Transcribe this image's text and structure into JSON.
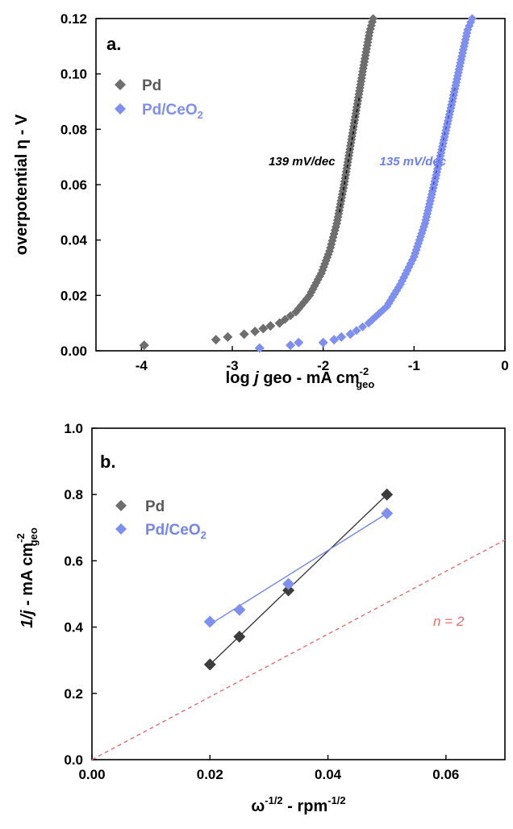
{
  "chart_data": [
    {
      "type": "scatter",
      "panel_label": "a.",
      "xlabel": {
        "pre": "log ",
        "italic": "j",
        "post": " geo - mA cm",
        "sup": "-2",
        "sub": "geo"
      },
      "ylabel": "overpotential η - V",
      "xlim": [
        -4.5,
        0
      ],
      "ylim": [
        0,
        0.12
      ],
      "xticks": [
        -4,
        -3,
        -2,
        -1,
        0
      ],
      "yticks": [
        0.0,
        0.02,
        0.04,
        0.06,
        0.08,
        0.1,
        0.12
      ],
      "ytick_labels": [
        "0.00",
        "0.02",
        "0.04",
        "0.06",
        "0.08",
        "0.10",
        "0.12"
      ],
      "legend_position": "top-left",
      "series": [
        {
          "name": "Pd",
          "color": "#6e6e6e",
          "sparse": [
            [
              -3.97,
              0.002
            ],
            [
              -3.18,
              0.004
            ],
            [
              -3.05,
              0.005
            ],
            [
              -2.87,
              0.006
            ],
            [
              -2.75,
              0.007
            ],
            [
              -2.66,
              0.008
            ],
            [
              -2.58,
              0.009
            ],
            [
              -2.48,
              0.01
            ]
          ],
          "dense_curve": [
            [
              -2.48,
              0.01
            ],
            [
              -2.3,
              0.014
            ],
            [
              -2.15,
              0.02
            ],
            [
              -2.02,
              0.028
            ],
            [
              -1.93,
              0.036
            ],
            [
              -1.85,
              0.046
            ],
            [
              -1.77,
              0.06
            ],
            [
              -1.7,
              0.074
            ],
            [
              -1.63,
              0.088
            ],
            [
              -1.56,
              0.102
            ],
            [
              -1.49,
              0.115
            ],
            [
              -1.45,
              0.12
            ]
          ]
        },
        {
          "name": "Pd/CeO",
          "name_sub": "2",
          "color": "#7e8ff0",
          "sparse": [
            [
              -2.7,
              0.001
            ],
            [
              -2.36,
              0.002
            ],
            [
              -2.27,
              0.003
            ],
            [
              -2.0,
              0.003
            ],
            [
              -1.88,
              0.004
            ],
            [
              -1.8,
              0.005
            ],
            [
              -1.7,
              0.006
            ]
          ],
          "dense_curve": [
            [
              -1.7,
              0.006
            ],
            [
              -1.5,
              0.01
            ],
            [
              -1.3,
              0.016
            ],
            [
              -1.15,
              0.024
            ],
            [
              -1.0,
              0.034
            ],
            [
              -0.88,
              0.046
            ],
            [
              -0.78,
              0.06
            ],
            [
              -0.68,
              0.075
            ],
            [
              -0.58,
              0.09
            ],
            [
              -0.49,
              0.104
            ],
            [
              -0.41,
              0.116
            ],
            [
              -0.36,
              0.12
            ]
          ]
        }
      ],
      "fit_lines": [
        {
          "series": "Pd",
          "color": "#111111",
          "points": [
            [
              -1.82,
              0.05
            ],
            [
              -1.6,
              0.092
            ]
          ]
        },
        {
          "series": "Pd/CeO2",
          "color": "#4455cc",
          "points": [
            [
              -0.8,
              0.058
            ],
            [
              -0.55,
              0.095
            ]
          ]
        }
      ],
      "annotations": [
        {
          "text": "139 mV/dec",
          "x": -2.6,
          "y": 0.067,
          "color": "#000000"
        },
        {
          "text": "135 mV/dec",
          "x": -1.38,
          "y": 0.067,
          "color": "#6c7ef0"
        }
      ]
    },
    {
      "type": "scatter",
      "panel_label": "b.",
      "xlabel": {
        "pre": "ω",
        "sup": "-1/2",
        "mid": " - rpm",
        "sup2": "-1/2"
      },
      "ylabel": {
        "italic": "1/j",
        "post": " - mA cm",
        "sup": "-2",
        "sub": "geo"
      },
      "xlim": [
        0,
        0.07
      ],
      "ylim": [
        0,
        1.0
      ],
      "xticks": [
        0.0,
        0.02,
        0.04,
        0.06
      ],
      "xtick_labels": [
        "0.00",
        "0.02",
        "0.04",
        "0.06"
      ],
      "yticks": [
        0.0,
        0.2,
        0.4,
        0.6,
        0.8,
        1.0
      ],
      "ytick_labels": [
        "0.0",
        "0.2",
        "0.4",
        "0.6",
        "0.8",
        "1.0"
      ],
      "legend_position": "top-left",
      "series": [
        {
          "name": "Pd",
          "color": "#3a3a3a",
          "marker_color": "#3c3c3c",
          "x": [
            0.02,
            0.025,
            0.0333,
            0.05
          ],
          "y": [
            0.287,
            0.371,
            0.511,
            0.8
          ],
          "fit": [
            [
              0.02,
              0.287
            ],
            [
              0.05,
              0.8
            ]
          ]
        },
        {
          "name": "Pd/CeO",
          "name_sub": "2",
          "color": "#7586ea",
          "marker_color": "#7e8ff0",
          "x": [
            0.02,
            0.025,
            0.0333,
            0.05
          ],
          "y": [
            0.416,
            0.452,
            0.53,
            0.743
          ],
          "fit": [
            [
              0.02,
              0.408
            ],
            [
              0.05,
              0.743
            ]
          ]
        }
      ],
      "reference_line": {
        "label": "n = 2",
        "color": "#e07070",
        "points": [
          [
            0.0,
            0.0
          ],
          [
            0.07,
            0.663
          ]
        ]
      }
    }
  ]
}
